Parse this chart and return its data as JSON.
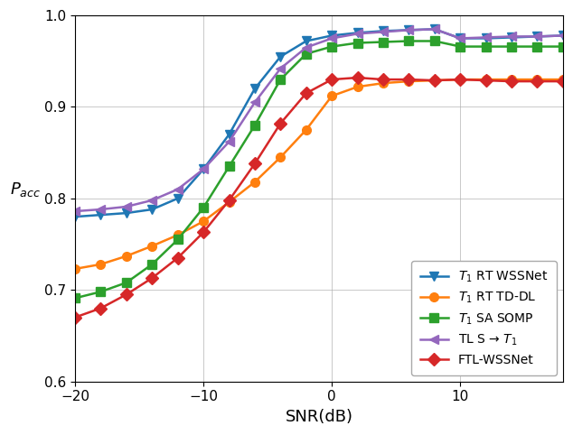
{
  "snr": [
    -20,
    -18,
    -16,
    -14,
    -12,
    -10,
    -8,
    -6,
    -4,
    -2,
    0,
    2,
    4,
    6,
    8,
    10,
    12,
    14,
    16,
    18
  ],
  "T1_RT_WSSNet": [
    0.78,
    0.782,
    0.784,
    0.788,
    0.8,
    0.832,
    0.87,
    0.92,
    0.955,
    0.972,
    0.978,
    0.981,
    0.983,
    0.984,
    0.985,
    0.975,
    0.975,
    0.976,
    0.977,
    0.978
  ],
  "T1_RT_TDDL": [
    0.723,
    0.728,
    0.737,
    0.748,
    0.76,
    0.775,
    0.796,
    0.818,
    0.845,
    0.875,
    0.912,
    0.922,
    0.926,
    0.928,
    0.929,
    0.93,
    0.93,
    0.93,
    0.93,
    0.93
  ],
  "T1_SA_SOMP": [
    0.691,
    0.698,
    0.708,
    0.728,
    0.755,
    0.79,
    0.835,
    0.88,
    0.93,
    0.958,
    0.966,
    0.97,
    0.971,
    0.972,
    0.972,
    0.966,
    0.966,
    0.966,
    0.966,
    0.966
  ],
  "TL_S_T1": [
    0.786,
    0.788,
    0.791,
    0.798,
    0.81,
    0.832,
    0.862,
    0.905,
    0.942,
    0.965,
    0.975,
    0.98,
    0.982,
    0.984,
    0.985,
    0.975,
    0.976,
    0.977,
    0.977,
    0.978
  ],
  "FTL_WSSNet": [
    0.67,
    0.68,
    0.695,
    0.713,
    0.735,
    0.763,
    0.798,
    0.838,
    0.882,
    0.915,
    0.93,
    0.932,
    0.93,
    0.93,
    0.929,
    0.93,
    0.929,
    0.928,
    0.928,
    0.928
  ],
  "colors": {
    "T1_RT_WSSNet": "#1f77b4",
    "T1_RT_TDDL": "#ff7f0e",
    "T1_SA_SOMP": "#2ca02c",
    "TL_S_T1": "#9467bd",
    "FTL_WSSNet": "#d62728"
  },
  "markers": {
    "T1_RT_WSSNet": "v",
    "T1_RT_TDDL": "o",
    "T1_SA_SOMP": "s",
    "TL_S_T1": "<",
    "FTL_WSSNet": "D"
  },
  "legend_labels": {
    "T1_RT_WSSNet": "$T_1$ RT WSSNet",
    "T1_RT_TDDL": "$T_1$ RT TD-DL",
    "T1_SA_SOMP": "$T_1$ SA SOMP",
    "TL_S_T1": "TL S → $T_1$",
    "FTL_WSSNet": "FTL-WSSNet"
  },
  "xlabel": "SNR(dB)",
  "ylabel": "$P_{acc}$",
  "xlim": [
    -20,
    18
  ],
  "ylim": [
    0.6,
    1.0
  ],
  "xticks": [
    -20,
    -10,
    0,
    10
  ],
  "yticks": [
    0.6,
    0.7,
    0.8,
    0.9,
    1.0
  ],
  "grid": true,
  "linewidth": 1.8,
  "markersize": 7,
  "ylabel_fontsize": 13,
  "xlabel_fontsize": 13,
  "tick_fontsize": 11,
  "legend_fontsize": 10
}
